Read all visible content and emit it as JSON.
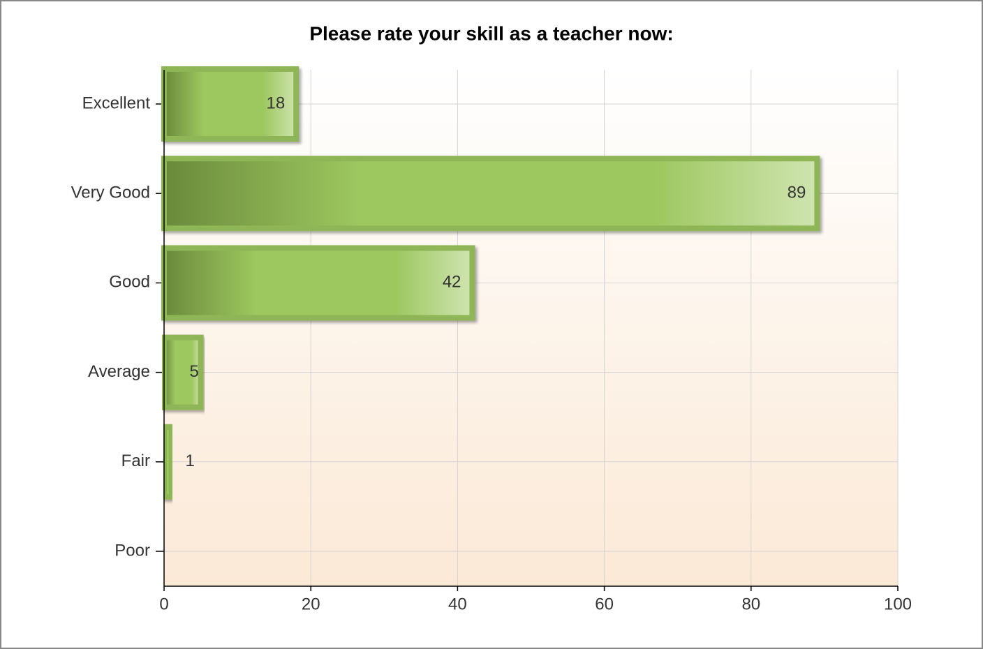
{
  "chart_data": {
    "type": "barh",
    "title": "Please rate your skill as a teacher now:",
    "categories": [
      "Excellent",
      "Very Good",
      "Good",
      "Average",
      "Fair",
      "Poor"
    ],
    "values": [
      18,
      89,
      42,
      5,
      1,
      0
    ],
    "color": "#9dc75f",
    "xlim": [
      0,
      100
    ],
    "xticks": [
      0,
      20,
      40,
      60,
      80,
      100
    ],
    "grid": true
  }
}
